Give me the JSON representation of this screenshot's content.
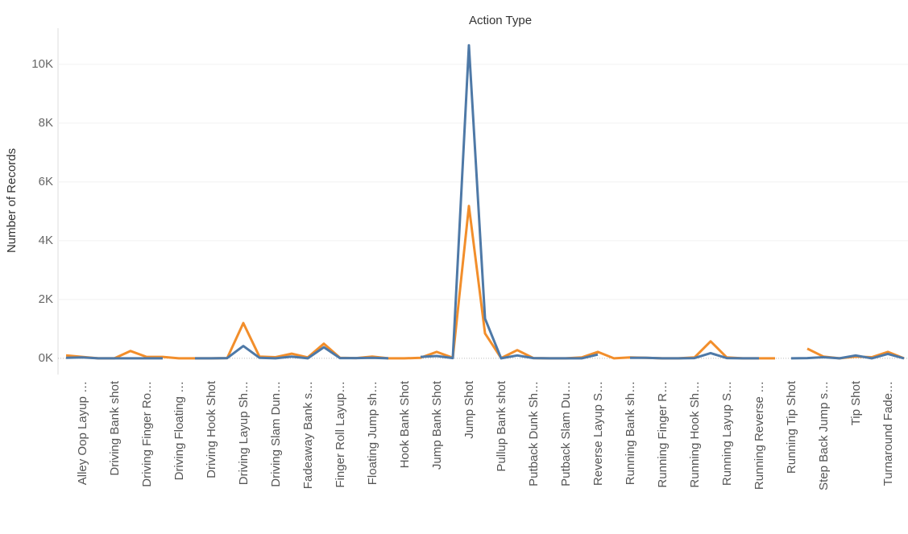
{
  "chart_data": {
    "type": "line",
    "title": "Action Type",
    "y_label": "Number of Records",
    "categories": [
      null,
      "Alley Oop Layup …",
      null,
      "Driving Bank shot",
      null,
      "Driving Finger Ro…",
      null,
      "Driving Floating …",
      null,
      "Driving Hook Shot",
      null,
      "Driving Layup Sh…",
      null,
      "Driving Slam Dun…",
      null,
      "Fadeaway Bank s…",
      null,
      "Finger Roll Layup…",
      null,
      "Floating Jump sh…",
      null,
      "Hook Bank Shot",
      null,
      "Jump Bank Shot",
      null,
      "Jump Shot",
      null,
      "Pullup Bank shot",
      null,
      "Putback Dunk Sh…",
      null,
      "Putback Slam Du…",
      null,
      "Reverse Layup S…",
      null,
      "Running Bank sh…",
      null,
      "Running Finger R…",
      null,
      "Running Hook Sh…",
      null,
      "Running Layup S…",
      null,
      "Running Reverse …",
      null,
      "Running Tip Shot",
      null,
      "Step Back Jump s…",
      null,
      "Tip Shot",
      null,
      "Turnaround Fade…",
      null
    ],
    "series": [
      {
        "color": "#f28e2b",
        "values": [
          100,
          50,
          0,
          0,
          250,
          50,
          50,
          0,
          0,
          0,
          10,
          1200,
          60,
          40,
          160,
          30,
          500,
          20,
          10,
          60,
          0,
          0,
          20,
          220,
          20,
          5180,
          850,
          10,
          280,
          10,
          0,
          0,
          30,
          220,
          0,
          30,
          20,
          0,
          0,
          30,
          580,
          30,
          0,
          0,
          0,
          null,
          330,
          60,
          0,
          60,
          40,
          220,
          0
        ]
      },
      {
        "color": "#4e79a7",
        "values": [
          20,
          30,
          0,
          0,
          0,
          0,
          0,
          null,
          0,
          0,
          10,
          420,
          20,
          0,
          60,
          0,
          380,
          10,
          10,
          20,
          0,
          null,
          50,
          80,
          10,
          10650,
          1350,
          0,
          100,
          10,
          0,
          0,
          0,
          130,
          null,
          20,
          20,
          0,
          0,
          10,
          180,
          10,
          0,
          0,
          null,
          0,
          10,
          40,
          0,
          100,
          0,
          150,
          0
        ]
      }
    ],
    "ylim": [
      -550,
      11230
    ],
    "yticks": [
      {
        "value": 0,
        "label": "0K"
      },
      {
        "value": 2000,
        "label": "2K"
      },
      {
        "value": 4000,
        "label": "4K"
      },
      {
        "value": 6000,
        "label": "6K"
      },
      {
        "value": 8000,
        "label": "8K"
      },
      {
        "value": 10000,
        "label": "10K"
      }
    ],
    "grid": true
  }
}
